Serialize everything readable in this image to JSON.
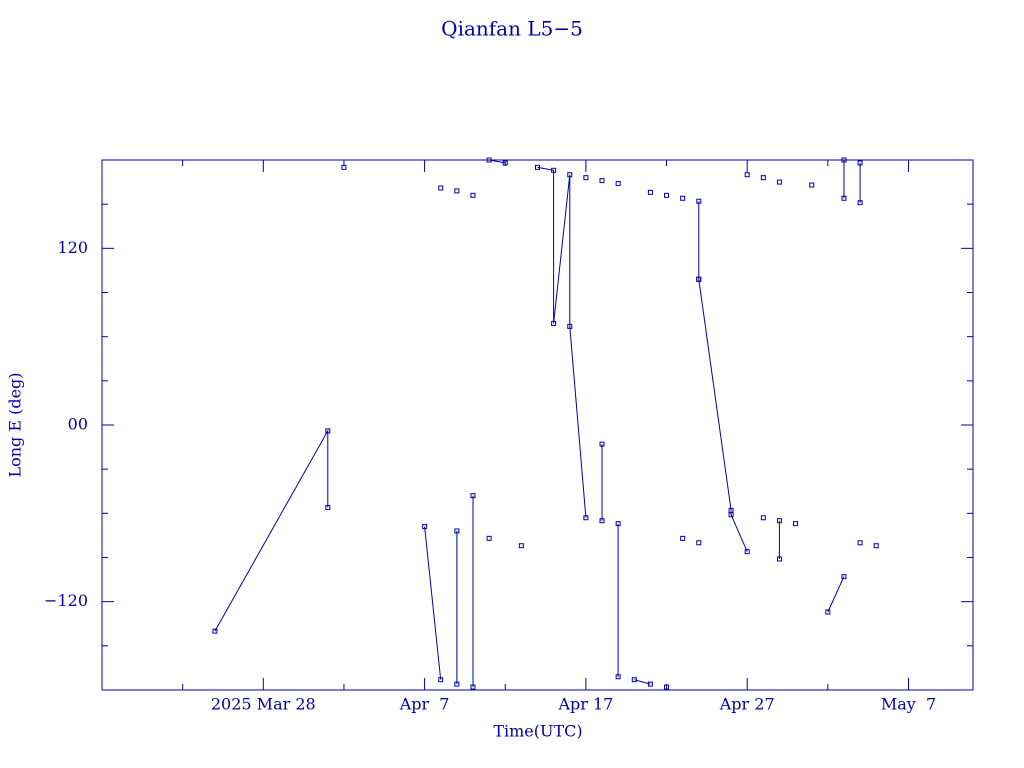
{
  "chart_data": {
    "type": "line",
    "title": "Qianfan L5−5",
    "xlabel": "Time(UTC)",
    "ylabel": "Long E (deg)",
    "color": "#0000a8",
    "marker": "square",
    "xlim": [
      "2025-03-18",
      "2025-05-11"
    ],
    "xticks": [
      {
        "value": "2025-03-28",
        "label": "2025 Mar 28"
      },
      {
        "value": "2025-04-07",
        "label": "Apr  7"
      },
      {
        "value": "2025-04-17",
        "label": "Apr 17"
      },
      {
        "value": "2025-04-27",
        "label": "Apr 27"
      },
      {
        "value": "2025-05-07",
        "label": "May  7"
      }
    ],
    "xminorticks": [
      "2025-03-23",
      "2025-04-02",
      "2025-04-12",
      "2025-04-22",
      "2025-05-02"
    ],
    "ylim": [
      -180,
      180
    ],
    "yticks": [
      {
        "value": 120,
        "label": "120"
      },
      {
        "value": 0,
        "label": "00"
      },
      {
        "value": -120,
        "label": "−120"
      }
    ],
    "yminorticks": [
      -150,
      -90,
      -60,
      -30,
      30,
      60,
      90,
      150
    ],
    "series": [
      {
        "name": "Qianfan L5-5",
        "x": [
          "2025-03-25",
          "2025-04-01",
          "2025-04-01",
          null,
          "2025-04-02",
          null,
          "2025-04-07",
          "2025-04-08",
          null,
          "2025-04-08",
          null,
          "2025-04-09",
          "2025-04-09",
          null,
          "2025-04-09",
          null,
          "2025-04-10",
          "2025-04-10",
          null,
          "2025-04-10",
          null,
          "2025-04-11",
          null,
          "2025-04-11",
          "2025-04-12",
          null,
          "2025-04-13",
          null,
          "2025-04-14",
          "2025-04-15",
          "2025-04-15",
          "2025-04-16",
          "2025-04-16",
          "2025-04-17",
          null,
          "2025-04-17",
          null,
          "2025-04-18",
          "2025-04-18",
          null,
          "2025-04-18",
          null,
          "2025-04-19",
          "2025-04-19",
          null,
          "2025-04-19",
          null,
          "2025-04-20",
          "2025-04-21",
          null,
          "2025-04-21",
          null,
          "2025-04-22",
          null,
          "2025-04-22",
          null,
          "2025-04-23",
          null,
          "2025-04-23",
          null,
          "2025-04-24",
          null,
          "2025-04-24",
          "2025-04-24",
          "2025-04-24",
          "2025-04-26",
          "2025-04-26",
          "2025-04-27",
          null,
          "2025-04-27",
          null,
          "2025-04-28",
          null,
          "2025-04-28",
          null,
          "2025-04-29",
          "2025-04-29",
          null,
          "2025-04-29",
          null,
          "2025-04-30",
          null,
          "2025-05-01",
          null,
          "2025-05-02",
          "2025-05-03",
          null,
          "2025-05-03",
          "2025-05-03",
          null,
          "2025-05-04",
          null,
          "2025-05-04",
          "2025-05-04",
          null,
          "2025-05-05"
        ],
        "values": [
          -140,
          -4,
          -56,
          null,
          175,
          null,
          -69,
          -173,
          null,
          161,
          null,
          -72,
          -176,
          null,
          159,
          null,
          -48,
          -178,
          null,
          156,
          null,
          -77,
          null,
          180,
          178,
          null,
          -82,
          null,
          175,
          173,
          69,
          170,
          67,
          -63,
          null,
          168,
          null,
          -13,
          -65,
          null,
          166,
          null,
          -67,
          -171,
          null,
          164,
          null,
          -173,
          -176,
          null,
          158,
          null,
          -178,
          null,
          156,
          null,
          -77,
          null,
          154,
          null,
          -80,
          null,
          152,
          99,
          99,
          -58,
          -61,
          -86,
          null,
          170,
          null,
          -63,
          null,
          168,
          null,
          -65,
          -91,
          null,
          165,
          null,
          -67,
          null,
          163,
          null,
          -127,
          -103,
          null,
          180,
          154,
          null,
          -80,
          null,
          151,
          178,
          null,
          -82
        ]
      }
    ]
  }
}
